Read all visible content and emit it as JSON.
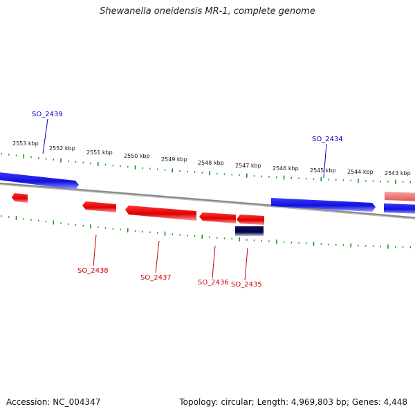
{
  "header": {
    "title": "Shewanella oneidensis MR-1, complete genome"
  },
  "footer": {
    "accession": "Accession: NC_004347",
    "summary": "Topology: circular; Length: 4,969,803 bp; Genes: 4,448"
  },
  "colors": {
    "forward_gene": "#1a1aee",
    "reverse_gene": "#ee1111",
    "reverse_gene_faded": "#ee8080",
    "selected_gene": "#111166",
    "tick": "#119911",
    "backbone": "#8a8a8a",
    "forward_label": "#0000bb",
    "reverse_label": "#cc0000"
  },
  "scale_labels": [
    "2553 kbp",
    "2552 kbp",
    "2551 kbp",
    "2550 kbp",
    "2549 kbp",
    "2548 kbp",
    "2547 kbp",
    "2546 kbp",
    "2545 kbp",
    "2544 kbp",
    "2543 kbp"
  ],
  "gene_labels": {
    "forward": [
      "SO_2439",
      "SO_2434"
    ],
    "reverse": [
      "SO_2438",
      "SO_2437",
      "SO_2436",
      "SO_2435"
    ]
  }
}
